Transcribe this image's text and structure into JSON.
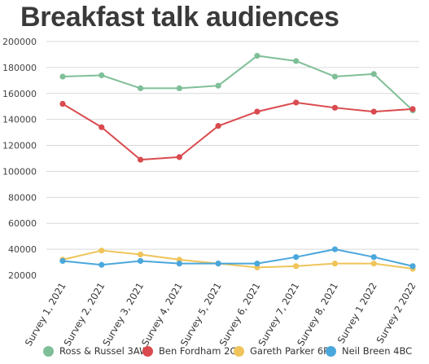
{
  "chart_data": {
    "type": "line",
    "title": "Breakfast talk audiences",
    "xlabel": "",
    "ylabel": "",
    "ylim": [
      20000,
      200000
    ],
    "yticks": [
      20000,
      40000,
      60000,
      80000,
      100000,
      120000,
      140000,
      160000,
      180000,
      200000
    ],
    "grid": true,
    "legend": "bottom",
    "categories": [
      "Survey 1, 2021",
      "Survey 2, 2021",
      "Survey 3, 2021",
      "Survey 4, 2021",
      "Survey 5, 2021",
      "Survey 6, 2021",
      "Survey 7, 2021",
      "Survey 8, 2021",
      "Survey 1 2022",
      "Survey 2 2022"
    ],
    "series": [
      {
        "name": "Ross & Russel 3AW",
        "color": "#7fbf98",
        "values": [
          173000,
          174000,
          164000,
          164000,
          166000,
          189000,
          185000,
          173000,
          175000,
          147000
        ]
      },
      {
        "name": "Ben Fordham 2GB",
        "color": "#d94a4e",
        "values": [
          152000,
          134000,
          109000,
          111000,
          135000,
          146000,
          153000,
          149000,
          146000,
          148000
        ]
      },
      {
        "name": "Gareth Parker 6PR",
        "color": "#efc45a",
        "values": [
          32000,
          39000,
          36000,
          32000,
          29000,
          26000,
          27000,
          29000,
          29000,
          25000
        ]
      },
      {
        "name": "Neil Breen 4BC",
        "color": "#4aa7dc",
        "values": [
          31000,
          28000,
          31000,
          29000,
          29000,
          29000,
          34000,
          40000,
          34000,
          27000
        ]
      }
    ]
  }
}
